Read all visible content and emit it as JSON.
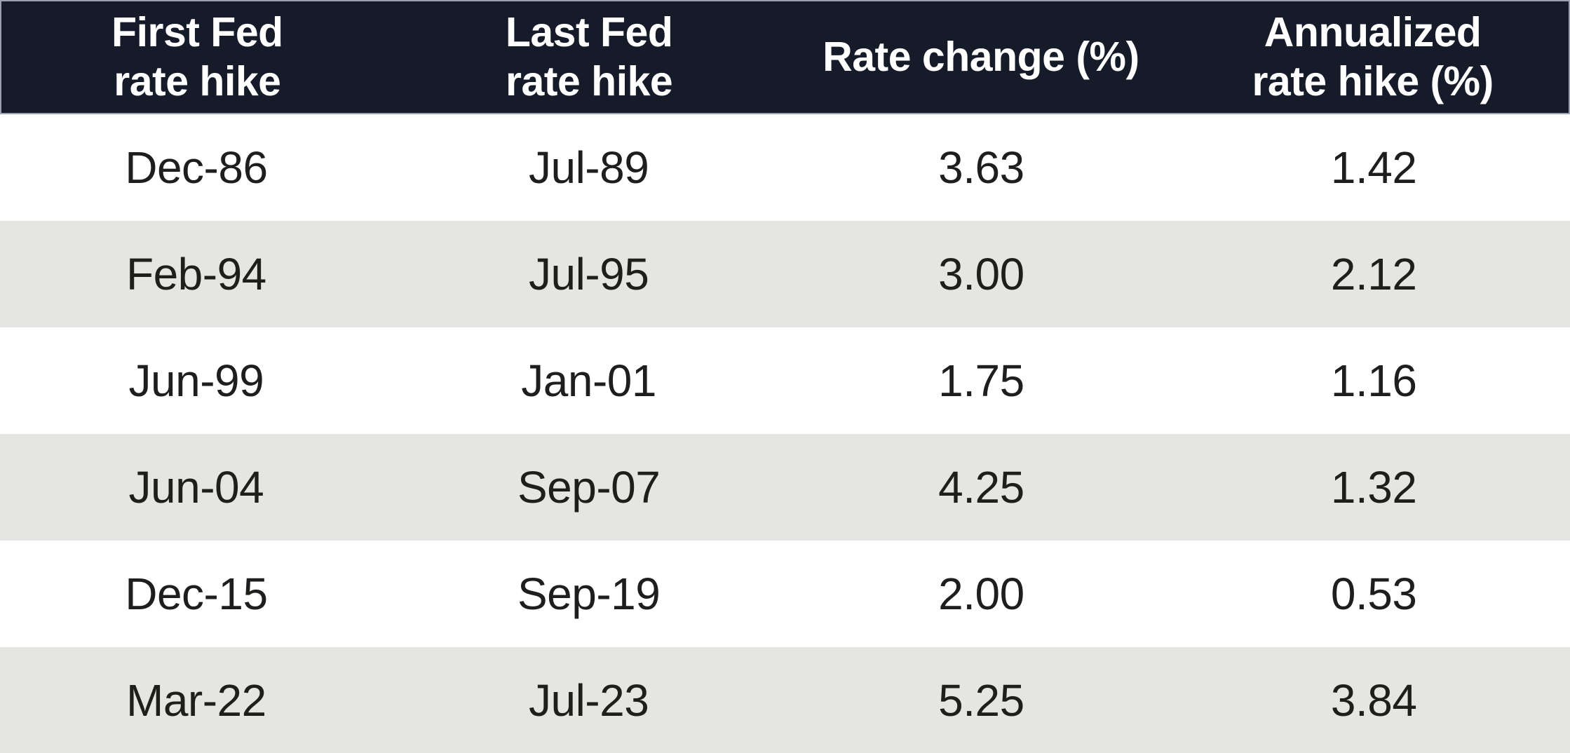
{
  "chart_data": {
    "type": "table",
    "columns": [
      "First Fed rate hike",
      "Last Fed rate hike",
      "Rate change (%)",
      "Annualized rate hike (%)"
    ],
    "rows": [
      {
        "first_fed_rate_hike": "Dec-86",
        "last_fed_rate_hike": "Jul-89",
        "rate_change_pct": 3.63,
        "annualized_rate_hike_pct": 1.42
      },
      {
        "first_fed_rate_hike": "Feb-94",
        "last_fed_rate_hike": "Jul-95",
        "rate_change_pct": 3.0,
        "annualized_rate_hike_pct": 2.12
      },
      {
        "first_fed_rate_hike": "Jun-99",
        "last_fed_rate_hike": "Jan-01",
        "rate_change_pct": 1.75,
        "annualized_rate_hike_pct": 1.16
      },
      {
        "first_fed_rate_hike": "Jun-04",
        "last_fed_rate_hike": "Sep-07",
        "rate_change_pct": 4.25,
        "annualized_rate_hike_pct": 1.32
      },
      {
        "first_fed_rate_hike": "Dec-15",
        "last_fed_rate_hike": "Sep-19",
        "rate_change_pct": 2.0,
        "annualized_rate_hike_pct": 0.53
      },
      {
        "first_fed_rate_hike": "Mar-22",
        "last_fed_rate_hike": "Jul-23",
        "rate_change_pct": 5.25,
        "annualized_rate_hike_pct": 3.84
      }
    ],
    "layout": {
      "header_position": "top",
      "row_striping": "alternating",
      "column_alignment": "center"
    }
  },
  "table": {
    "header": {
      "col1": "First Fed\nrate hike",
      "col2": "Last Fed\nrate hike",
      "col3": "Rate change (%)",
      "col4": "Annualized\nrate hike (%)"
    },
    "rows": [
      [
        "Dec-86",
        "Jul-89",
        "3.63",
        "1.42"
      ],
      [
        "Feb-94",
        "Jul-95",
        "3.00",
        "2.12"
      ],
      [
        "Jun-99",
        "Jan-01",
        "1.75",
        "1.16"
      ],
      [
        "Jun-04",
        "Sep-07",
        "4.25",
        "1.32"
      ],
      [
        "Dec-15",
        "Sep-19",
        "2.00",
        "0.53"
      ],
      [
        "Mar-22",
        "Jul-23",
        "5.25",
        "3.84"
      ]
    ]
  },
  "colors": {
    "header_bg": "#151B29",
    "header_text": "#FFFFFF",
    "header_border": "#9BA1AE",
    "row_bg": "#FFFFFF",
    "row_alt_bg": "#E5E6E1",
    "cell_text": "#1E1E1C"
  }
}
